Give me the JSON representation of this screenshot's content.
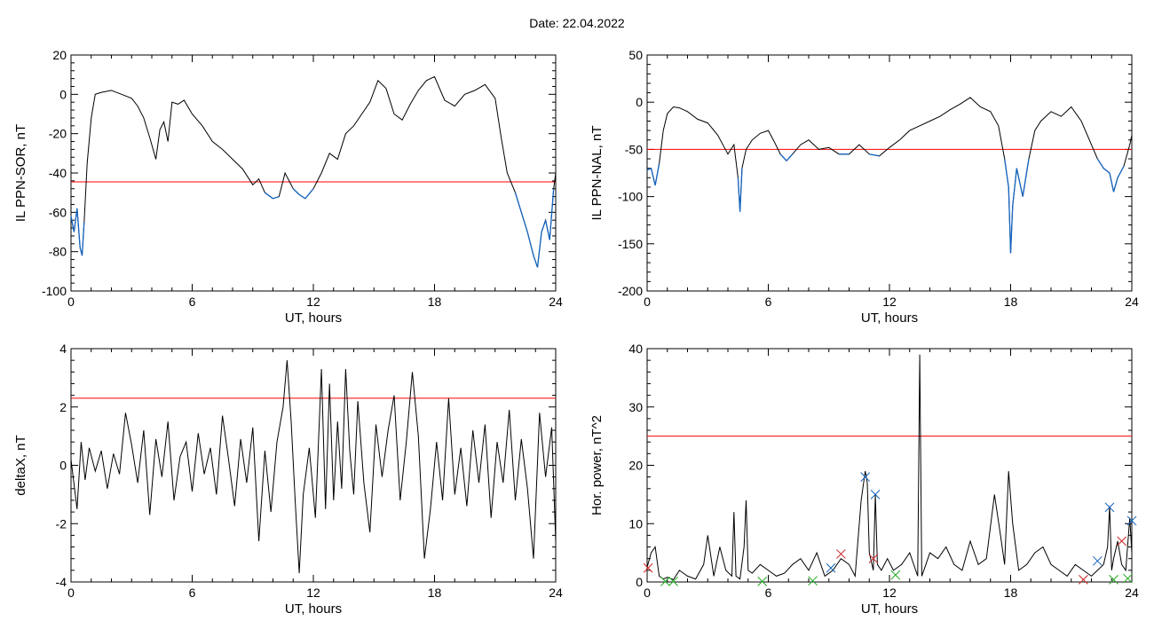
{
  "figure": {
    "title": "Date:  22.04.2022"
  },
  "colors": {
    "axis": "#000000",
    "trace": "#000000",
    "threshold": "#ff0000",
    "below": "#1565c0",
    "mark_blue": "#1565c0",
    "mark_red": "#cc2222",
    "mark_green": "#22aa22"
  },
  "chart_data": [
    {
      "id": "sor",
      "type": "line",
      "xlabel": "UT, hours",
      "ylabel": "IL PPN-SOR, nT",
      "xlim": [
        0,
        24
      ],
      "ylim": [
        -100,
        20
      ],
      "xticks": [
        0,
        6,
        12,
        18,
        24
      ],
      "yticks": [
        -100,
        -80,
        -60,
        -40,
        -20,
        0,
        20
      ],
      "threshold": -44.5,
      "below_threshold_color": "blue",
      "series": [
        {
          "x": [
            0,
            0.15,
            0.3,
            0.45,
            0.55,
            0.65,
            0.8,
            1.0,
            1.2,
            1.5,
            2.0,
            2.5,
            3.0,
            3.3,
            3.6,
            3.9,
            4.2,
            4.4,
            4.6,
            4.8,
            5.0,
            5.3,
            5.6,
            6.0,
            6.5,
            7.0,
            7.5,
            8.0,
            8.5,
            9.0,
            9.3,
            9.6,
            10.0,
            10.3,
            10.6,
            11.0,
            11.3,
            11.6,
            12.0,
            12.4,
            12.8,
            13.2,
            13.6,
            14.0,
            14.4,
            14.8,
            15.2,
            15.6,
            16.0,
            16.4,
            16.8,
            17.2,
            17.6,
            18.0,
            18.5,
            19.0,
            19.5,
            20.0,
            20.5,
            21.0,
            21.3,
            21.6,
            22.0,
            22.3,
            22.6,
            22.9,
            23.1,
            23.3,
            23.5,
            23.7,
            23.9,
            24.0
          ],
          "y": [
            -62,
            -70,
            -58,
            -78,
            -82,
            -65,
            -35,
            -12,
            0,
            1,
            2,
            0,
            -2,
            -6,
            -12,
            -22,
            -33,
            -18,
            -14,
            -24,
            -4,
            -5,
            -3,
            -10,
            -16,
            -24,
            -28,
            -33,
            -38,
            -46,
            -43,
            -50,
            -53,
            -52,
            -40,
            -48,
            -51,
            -53,
            -48,
            -40,
            -30,
            -33,
            -20,
            -16,
            -10,
            -4,
            7,
            3,
            -10,
            -13,
            -5,
            2,
            7,
            9,
            -3,
            -6,
            0,
            2,
            5,
            -2,
            -22,
            -40,
            -50,
            -60,
            -70,
            -82,
            -88,
            -70,
            -64,
            -74,
            -48,
            -40
          ]
        }
      ]
    },
    {
      "id": "nal",
      "type": "line",
      "xlabel": "UT, hours",
      "ylabel": "IL PPN-NAL, nT",
      "xlim": [
        0,
        24
      ],
      "ylim": [
        -200,
        50
      ],
      "xticks": [
        0,
        6,
        12,
        18,
        24
      ],
      "yticks": [
        -200,
        -150,
        -100,
        -50,
        0,
        50
      ],
      "threshold": -50,
      "below_threshold_color": "blue",
      "series": [
        {
          "x": [
            0,
            0.2,
            0.4,
            0.6,
            0.8,
            1.0,
            1.3,
            1.6,
            2.0,
            2.5,
            3.0,
            3.5,
            4.0,
            4.3,
            4.5,
            4.6,
            4.7,
            4.9,
            5.2,
            5.6,
            6.0,
            6.3,
            6.6,
            6.9,
            7.2,
            7.6,
            8.0,
            8.5,
            9.0,
            9.5,
            10.0,
            10.5,
            11.0,
            11.5,
            12.0,
            12.5,
            13.0,
            13.5,
            14.0,
            14.5,
            15.0,
            15.5,
            16.0,
            16.5,
            17.0,
            17.4,
            17.7,
            17.9,
            18.0,
            18.1,
            18.3,
            18.6,
            18.9,
            19.2,
            19.5,
            20.0,
            20.5,
            21.0,
            21.5,
            22.0,
            22.3,
            22.6,
            22.9,
            23.1,
            23.3,
            23.6,
            23.9,
            24.0
          ],
          "y": [
            -72,
            -70,
            -88,
            -65,
            -30,
            -12,
            -5,
            -6,
            -10,
            -18,
            -22,
            -35,
            -55,
            -45,
            -80,
            -116,
            -70,
            -50,
            -40,
            -33,
            -30,
            -42,
            -55,
            -62,
            -55,
            -45,
            -40,
            -50,
            -48,
            -55,
            -55,
            -45,
            -55,
            -57,
            -48,
            -40,
            -30,
            -25,
            -20,
            -15,
            -8,
            -2,
            5,
            -5,
            -10,
            -25,
            -60,
            -90,
            -160,
            -110,
            -70,
            -100,
            -60,
            -30,
            -20,
            -10,
            -15,
            -5,
            -20,
            -45,
            -60,
            -70,
            -75,
            -95,
            -80,
            -68,
            -45,
            -35
          ]
        }
      ]
    },
    {
      "id": "deltax",
      "type": "line",
      "xlabel": "UT, hours",
      "ylabel": "deltaX, nT",
      "xlim": [
        0,
        24
      ],
      "ylim": [
        -4,
        4
      ],
      "xticks": [
        0,
        6,
        12,
        18,
        24
      ],
      "yticks": [
        -4,
        -2,
        0,
        2,
        4
      ],
      "threshold": 2.3,
      "series": [
        {
          "x": [
            0,
            0.3,
            0.5,
            0.7,
            0.9,
            1.2,
            1.5,
            1.8,
            2.1,
            2.4,
            2.7,
            3.0,
            3.3,
            3.6,
            3.9,
            4.2,
            4.5,
            4.8,
            5.1,
            5.4,
            5.7,
            6.0,
            6.3,
            6.6,
            6.9,
            7.2,
            7.5,
            7.8,
            8.1,
            8.4,
            8.7,
            9.0,
            9.3,
            9.6,
            9.9,
            10.2,
            10.5,
            10.7,
            10.9,
            11.1,
            11.3,
            11.5,
            11.8,
            12.1,
            12.4,
            12.6,
            12.8,
            13.0,
            13.2,
            13.4,
            13.6,
            13.8,
            14.0,
            14.2,
            14.5,
            14.8,
            15.1,
            15.4,
            15.7,
            16.0,
            16.3,
            16.6,
            16.9,
            17.2,
            17.5,
            17.8,
            18.1,
            18.4,
            18.7,
            19.0,
            19.3,
            19.6,
            19.9,
            20.2,
            20.5,
            20.8,
            21.1,
            21.4,
            21.7,
            22.0,
            22.3,
            22.6,
            22.9,
            23.2,
            23.5,
            23.8,
            24.0
          ],
          "y": [
            0.2,
            -1.5,
            0.8,
            -0.5,
            0.6,
            -0.2,
            0.5,
            -0.8,
            0.4,
            -0.3,
            1.8,
            0.7,
            -0.6,
            1.2,
            -1.7,
            0.9,
            -0.4,
            1.5,
            -1.2,
            0.3,
            0.8,
            -0.9,
            1.1,
            -0.3,
            0.6,
            -1.0,
            1.7,
            0.2,
            -1.4,
            0.9,
            -0.6,
            1.3,
            -2.6,
            0.5,
            -1.6,
            0.8,
            2.0,
            3.6,
            1.5,
            -1.2,
            -3.7,
            -1.0,
            0.6,
            -1.8,
            3.3,
            -1.5,
            2.8,
            -1.2,
            1.5,
            -0.8,
            3.3,
            0.5,
            -1.0,
            2.2,
            -0.6,
            -2.3,
            1.4,
            -0.4,
            1.2,
            2.4,
            -1.2,
            0.8,
            3.2,
            1.0,
            -3.2,
            -1.5,
            0.8,
            -1.2,
            2.3,
            -1.0,
            0.6,
            -1.4,
            1.2,
            -0.6,
            1.4,
            -1.8,
            0.8,
            -0.6,
            1.9,
            -1.2,
            0.9,
            -0.8,
            -3.2,
            1.8,
            -0.4,
            1.3,
            -2.6
          ]
        }
      ]
    },
    {
      "id": "power",
      "type": "line",
      "xlabel": "UT, hours",
      "ylabel": "Hor. power, nT^2",
      "xlim": [
        0,
        24
      ],
      "ylim": [
        0,
        40
      ],
      "xticks": [
        0,
        6,
        12,
        18,
        24
      ],
      "yticks": [
        0,
        10,
        20,
        30,
        40
      ],
      "threshold": 25,
      "series": [
        {
          "x": [
            0,
            0.2,
            0.4,
            0.6,
            0.8,
            1.0,
            1.3,
            1.6,
            2.0,
            2.4,
            2.8,
            3.0,
            3.3,
            3.6,
            3.9,
            4.2,
            4.3,
            4.4,
            4.6,
            4.8,
            4.9,
            5.0,
            5.2,
            5.6,
            6.0,
            6.4,
            6.8,
            7.2,
            7.6,
            8.0,
            8.4,
            8.8,
            9.2,
            9.6,
            10.0,
            10.3,
            10.6,
            10.8,
            10.9,
            11.0,
            11.2,
            11.3,
            11.4,
            11.6,
            11.9,
            12.2,
            12.6,
            13.0,
            13.4,
            13.5,
            13.6,
            13.8,
            14.0,
            14.4,
            14.8,
            15.2,
            15.6,
            16.0,
            16.4,
            16.8,
            17.2,
            17.5,
            17.7,
            17.9,
            18.1,
            18.4,
            18.8,
            19.2,
            19.6,
            20.0,
            20.4,
            20.8,
            21.2,
            21.6,
            22.0,
            22.3,
            22.6,
            22.8,
            22.9,
            23.0,
            23.1,
            23.3,
            23.5,
            23.7,
            23.9,
            24.0
          ],
          "y": [
            2.5,
            5,
            6,
            1,
            0.5,
            0.8,
            0.4,
            2,
            1,
            0.5,
            3,
            8,
            1,
            6,
            2,
            1,
            12,
            1,
            0.5,
            6,
            14,
            2,
            1.5,
            3,
            2,
            1,
            1.5,
            3,
            4,
            2,
            5,
            1,
            2,
            4,
            3,
            1,
            14,
            19,
            17,
            5,
            2,
            15,
            3,
            2,
            4,
            2,
            3,
            5,
            1,
            39,
            1,
            3,
            5,
            4,
            6,
            3,
            2,
            7,
            3,
            4,
            15,
            8,
            3,
            19,
            10,
            2,
            3,
            5,
            6,
            3,
            2,
            1,
            3,
            2,
            1,
            2,
            3,
            6,
            13,
            2,
            4,
            7,
            3,
            2,
            11,
            5
          ]
        }
      ],
      "markers": {
        "blue": [
          [
            9.1,
            2.4
          ],
          [
            10.8,
            18
          ],
          [
            11.3,
            15
          ],
          [
            22.3,
            3.6
          ],
          [
            22.9,
            12.8
          ],
          [
            24,
            10.5
          ]
        ],
        "red": [
          [
            0.05,
            2.4
          ],
          [
            9.6,
            4.8
          ],
          [
            11.2,
            4.0
          ],
          [
            21.6,
            0.4
          ],
          [
            23.5,
            7
          ]
        ],
        "green": [
          [
            0.9,
            0.1
          ],
          [
            1.3,
            0.1
          ],
          [
            5.7,
            0.1
          ],
          [
            8.2,
            0.2
          ],
          [
            12.3,
            1.2
          ],
          [
            23.1,
            0.4
          ],
          [
            23.8,
            0.6
          ]
        ]
      }
    }
  ]
}
